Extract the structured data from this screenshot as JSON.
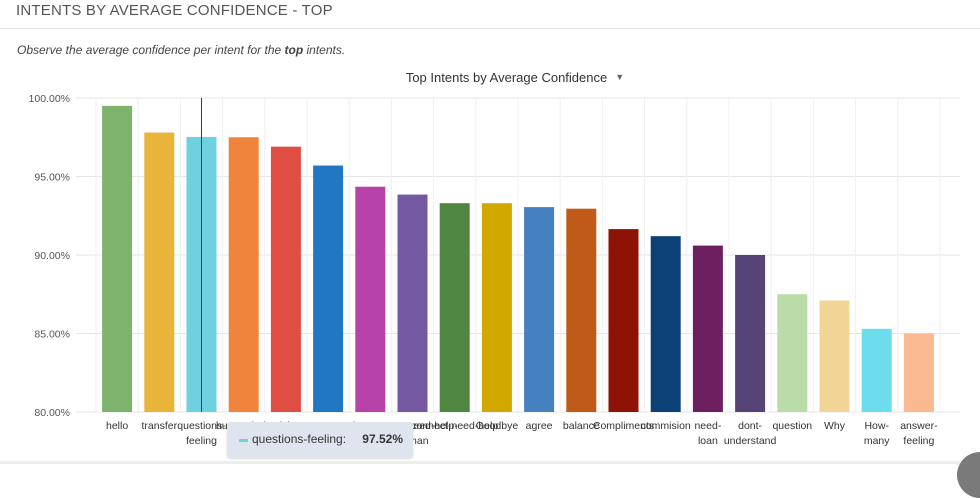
{
  "header": {
    "title": "INTENTS BY AVERAGE CONFIDENCE - TOP"
  },
  "description": {
    "prefix": "Observe the average confidence per intent for the ",
    "bold": "top",
    "suffix": " intents."
  },
  "chart_title": "Top Intents by Average Confidence",
  "tooltip": {
    "name": "questions-feeling:",
    "value": "97.52%",
    "color": "#6fd0e0"
  },
  "chart_data": {
    "type": "bar",
    "title": "Top Intents by Average Confidence",
    "xlabel": "",
    "ylabel": "",
    "ylim": [
      80,
      100
    ],
    "y_ticks": [
      "80.00%",
      "85.00%",
      "90.00%",
      "95.00%",
      "100.00%"
    ],
    "grid": true,
    "categories": [
      [
        "hello"
      ],
      [
        "transfer"
      ],
      [
        "questions-",
        "feeling"
      ],
      [
        "human-help"
      ],
      [
        "pricing"
      ],
      [
        "support"
      ],
      [
        "about-you"
      ],
      [
        "connect-need-help-",
        "human"
      ],
      [
        "connect-need-help"
      ],
      [
        "Goodbye"
      ],
      [
        "agree"
      ],
      [
        "balance"
      ],
      [
        "Compliments"
      ],
      [
        "commision"
      ],
      [
        "need-",
        "loan"
      ],
      [
        "dont-",
        "understand"
      ],
      [
        "question"
      ],
      [
        "Why"
      ],
      [
        "How-",
        "many"
      ],
      [
        "answer-",
        "feeling"
      ]
    ],
    "values": [
      99.5,
      97.8,
      97.52,
      97.5,
      96.9,
      95.7,
      94.35,
      93.85,
      93.3,
      93.3,
      93.05,
      92.95,
      91.65,
      91.2,
      90.6,
      90.0,
      87.5,
      87.1,
      85.3,
      85.0
    ],
    "colors": [
      "#7db36c",
      "#e8b53a",
      "#6fd0e0",
      "#f0843c",
      "#e04d43",
      "#2277c3",
      "#b843a8",
      "#7259a1",
      "#4f8641",
      "#d1a800",
      "#4580c0",
      "#c05a18",
      "#8c1306",
      "#0b4177",
      "#6d1f5f",
      "#574476",
      "#b9dca8",
      "#f2d596",
      "#6dddee",
      "#fab991"
    ]
  }
}
